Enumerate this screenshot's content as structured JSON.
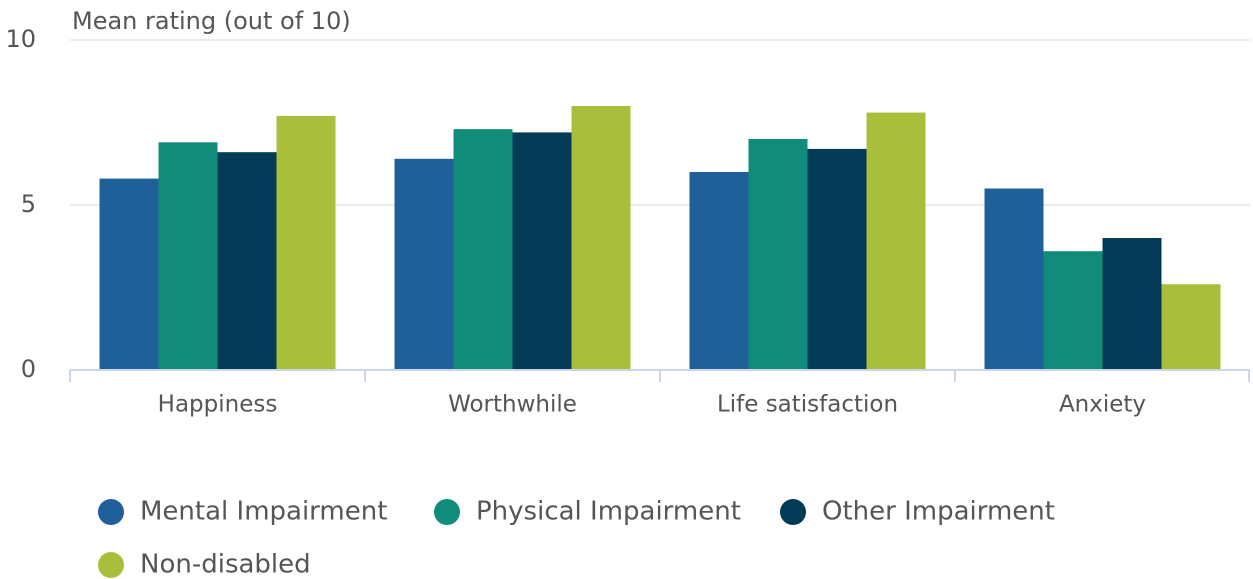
{
  "chart_data": {
    "type": "bar",
    "y_axis_title": "Mean rating (out of 10)",
    "categories": [
      "Happiness",
      "Worthwhile",
      "Life satisfaction",
      "Anxiety"
    ],
    "series": [
      {
        "name": "Mental Impairment",
        "color": "#20609a",
        "values": [
          5.8,
          6.4,
          6.0,
          5.5
        ]
      },
      {
        "name": "Physical Impairment",
        "color": "#128c7a",
        "values": [
          6.9,
          7.3,
          7.0,
          3.6
        ]
      },
      {
        "name": "Other Impairment",
        "color": "#033b57",
        "values": [
          6.6,
          7.2,
          6.7,
          4.0
        ]
      },
      {
        "name": "Non-disabled",
        "color": "#a9bf3b",
        "values": [
          7.7,
          8.0,
          7.8,
          2.6
        ]
      }
    ],
    "ylim": [
      0,
      10
    ],
    "yticks": [
      0,
      5,
      10
    ],
    "grid": true,
    "legend": "bottom"
  }
}
